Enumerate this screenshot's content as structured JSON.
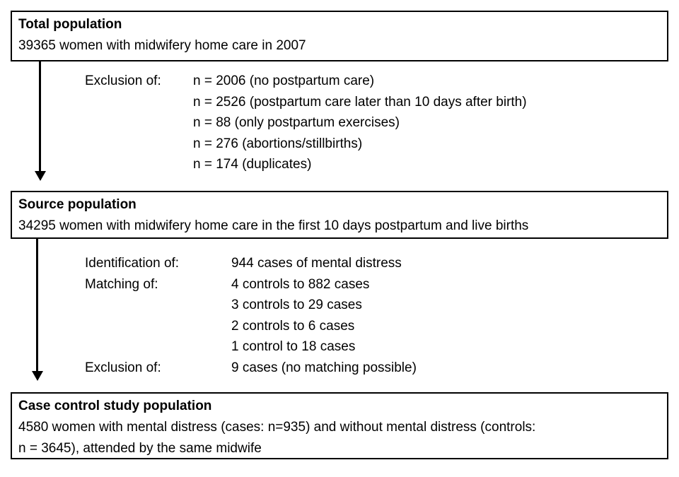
{
  "diagram": {
    "colors": {
      "border": "#000000",
      "text": "#000000",
      "background": "#ffffff"
    },
    "box_total": {
      "title": "Total population",
      "body": "39365 women with midwifery home care in 2007"
    },
    "exclusion_block": {
      "rows": [
        {
          "label": "Exclusion of:",
          "value": "n = 2006 (no postpartum care)"
        },
        {
          "label": "",
          "value": "n = 2526 (postpartum care later than 10 days after birth)"
        },
        {
          "label": "",
          "value": "n = 88 (only postpartum exercises)"
        },
        {
          "label": "",
          "value": "n = 276 (abortions/stillbirths)"
        },
        {
          "label": "",
          "value": "n = 174 (duplicates)"
        }
      ]
    },
    "box_source": {
      "title": "Source population",
      "body": "34295 women with midwifery home care in the first 10 days postpartum and live births"
    },
    "matching_block": {
      "rows": [
        {
          "label": "Identification of:",
          "value": "944 cases of mental distress"
        },
        {
          "label": "Matching of:",
          "value": "4 controls to 882 cases"
        },
        {
          "label": "",
          "value": "3 controls to 29 cases"
        },
        {
          "label": "",
          "value": "2 controls to 6 cases"
        },
        {
          "label": "",
          "value": "1 control to 18 cases"
        },
        {
          "label": "Exclusion of:",
          "value": "9 cases (no matching possible)"
        }
      ]
    },
    "box_casecontrol": {
      "title": "Case control study population",
      "body_line1": "4580 women with mental distress (cases: n=935) and without mental distress (controls:",
      "body_line2": "n = 3645), attended by the same midwife"
    }
  }
}
